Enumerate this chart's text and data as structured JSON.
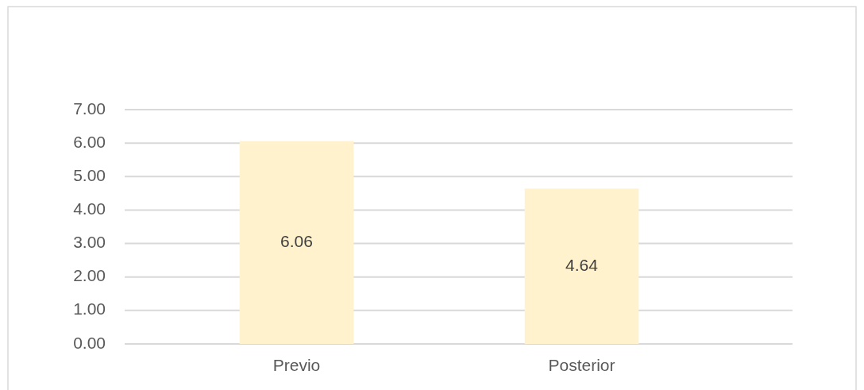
{
  "chart_data": {
    "type": "bar",
    "categories": [
      "Previo",
      "Posterior"
    ],
    "values": [
      6.06,
      4.64
    ],
    "color": "#fff2cc",
    "ylim": [
      0,
      7
    ],
    "yticks": [
      {
        "value": 0,
        "label": "0.00"
      },
      {
        "value": 1,
        "label": "1.00"
      },
      {
        "value": 2,
        "label": "2.00"
      },
      {
        "value": 3,
        "label": "3.00"
      },
      {
        "value": 4,
        "label": "4.00"
      },
      {
        "value": 5,
        "label": "5.00"
      },
      {
        "value": 6,
        "label": "6.00"
      },
      {
        "value": 7,
        "label": "7.00"
      }
    ],
    "grid": "y",
    "data_labels": true
  }
}
